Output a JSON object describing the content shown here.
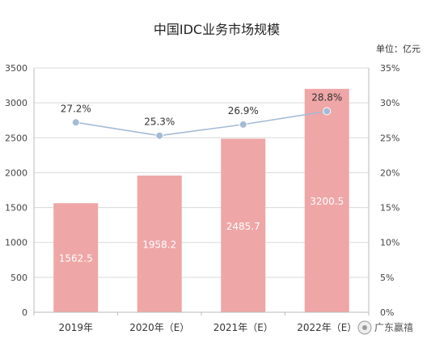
{
  "chart_data": {
    "type": "bar",
    "title": "中国IDC业务市场规模",
    "unit_label": "单位：亿元",
    "categories": [
      "2019年",
      "2020年（E）",
      "2021年（E）",
      "2022年（E）"
    ],
    "series": [
      {
        "type": "bar",
        "axis": "left",
        "values": [
          1562.5,
          1958.2,
          2485.7,
          3200.5
        ]
      },
      {
        "type": "line",
        "axis": "right",
        "values": [
          27.2,
          25.3,
          26.9,
          28.8
        ]
      }
    ],
    "bar_labels": [
      "1562.5",
      "1958.2",
      "2485.7",
      "3200.5"
    ],
    "line_labels": [
      "27.2%",
      "25.3%",
      "26.9%",
      "28.8%"
    ],
    "y_left": {
      "ylim": [
        0,
        3500
      ],
      "ticks": [
        "0",
        "500",
        "1000",
        "1500",
        "2000",
        "2500",
        "3000",
        "3500"
      ]
    },
    "y_right": {
      "ylim": [
        0,
        35
      ],
      "ticks": [
        "0%",
        "5%",
        "10%",
        "15%",
        "20%",
        "25%",
        "30%",
        "35%"
      ]
    },
    "grid": true,
    "colors": {
      "bar": "#efa6a6",
      "line": "#a3bbd6",
      "point": "#a3bbd6",
      "grid": "#d9d9d9"
    }
  },
  "watermark": "广东赢禧"
}
